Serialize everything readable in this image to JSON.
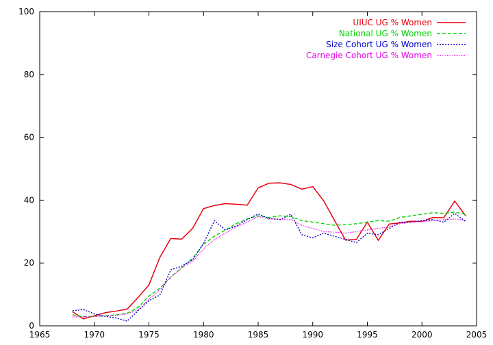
{
  "chart_data": {
    "type": "line",
    "title": "",
    "xlabel": "",
    "ylabel": "",
    "xlim": [
      1965,
      2005
    ],
    "ylim": [
      0,
      100
    ],
    "xticks": [
      1965,
      1970,
      1975,
      1980,
      1985,
      1990,
      1995,
      2000,
      2005
    ],
    "yticks": [
      0,
      20,
      40,
      60,
      80,
      100
    ],
    "grid": false,
    "legend_position": "top-right",
    "x": [
      1968,
      1969,
      1970,
      1971,
      1972,
      1973,
      1974,
      1975,
      1976,
      1977,
      1978,
      1979,
      1980,
      1981,
      1982,
      1983,
      1984,
      1985,
      1986,
      1987,
      1988,
      1989,
      1990,
      1991,
      1992,
      1993,
      1994,
      1995,
      1996,
      1997,
      1998,
      1999,
      2000,
      2001,
      2002,
      2003,
      2004
    ],
    "series": [
      {
        "name": "UIUC UG % Women",
        "color": "#e8000b",
        "dash": "solid",
        "values": [
          4.5,
          2.2,
          3.2,
          4.2,
          4.7,
          5.3,
          9.0,
          13.0,
          21.8,
          27.8,
          27.6,
          31.0,
          37.3,
          38.3,
          38.9,
          38.7,
          38.4,
          43.9,
          45.4,
          45.5,
          45.0,
          43.5,
          44.3,
          39.8,
          33.5,
          27.3,
          27.5,
          33.0,
          27.2,
          32.4,
          32.8,
          33.3,
          33.2,
          34.5,
          34.4,
          39.7,
          35.0
        ]
      },
      {
        "name": "National UG % Women",
        "color": "#00d000",
        "dash": "dashed",
        "values": [
          3.5,
          2.9,
          3.0,
          3.2,
          3.5,
          4.0,
          5.8,
          9.5,
          12.0,
          15.5,
          18.5,
          21.5,
          26.0,
          28.5,
          30.5,
          32.5,
          34.0,
          35.0,
          34.5,
          35.0,
          34.8,
          33.5,
          33.0,
          32.5,
          32.0,
          32.2,
          32.5,
          33.0,
          33.5,
          33.3,
          34.5,
          35.0,
          35.5,
          36.0,
          35.8,
          36.2,
          35.5
        ]
      },
      {
        "name": "Size Cohort UG % Women",
        "color": "#0000cc",
        "dash": "dotted",
        "values": [
          4.8,
          5.2,
          3.8,
          3.0,
          2.5,
          1.5,
          4.8,
          8.0,
          9.8,
          17.8,
          19.0,
          21.0,
          26.2,
          33.5,
          30.5,
          31.8,
          33.8,
          35.6,
          34.2,
          33.8,
          35.5,
          29.0,
          28.0,
          29.5,
          28.5,
          27.5,
          26.5,
          29.5,
          29.0,
          31.0,
          33.0,
          33.0,
          33.5,
          33.8,
          33.0,
          35.8,
          33.2
        ]
      },
      {
        "name": "Carnegie Cohort UG % Women",
        "color": "#e800e8",
        "dash": "dotted-fine",
        "values": [
          2.8,
          2.9,
          3.0,
          3.1,
          3.3,
          3.8,
          5.0,
          8.5,
          11.5,
          15.5,
          18.5,
          20.5,
          24.5,
          27.5,
          29.5,
          31.5,
          33.0,
          34.8,
          34.0,
          34.0,
          33.8,
          32.0,
          31.0,
          30.0,
          29.8,
          29.5,
          30.0,
          30.5,
          31.0,
          31.5,
          32.5,
          33.0,
          33.2,
          33.5,
          33.8,
          34.0,
          33.5
        ]
      }
    ]
  }
}
